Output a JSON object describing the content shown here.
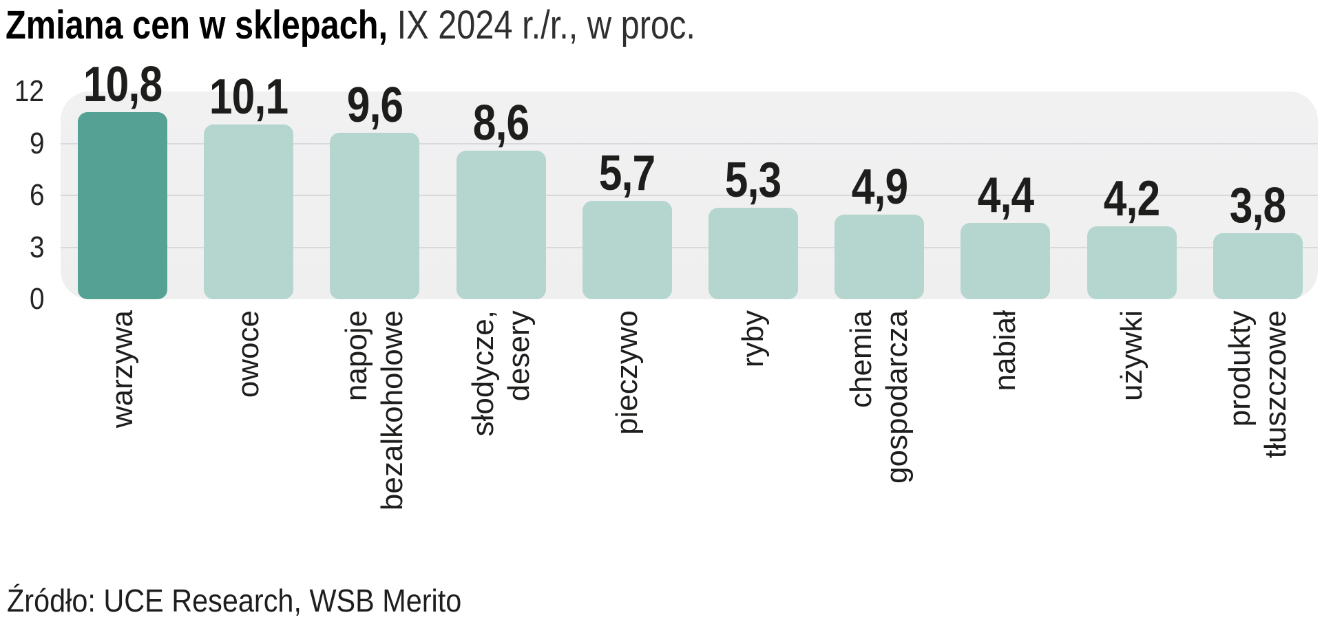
{
  "title": {
    "main": "Zmiana cen w sklepach,",
    "subtitle": "IX 2024 r./r., w proc."
  },
  "source": "Źródło: UCE Research, WSB Merito",
  "chart_data": {
    "type": "bar",
    "title": "Zmiana cen w sklepach, IX 2024 r./r., w proc.",
    "categories": [
      "warzywa",
      "owoce",
      "napoje bezalkoholowe",
      "słodycze, desery",
      "pieczywo",
      "ryby",
      "chemia gospodarcza",
      "nabiał",
      "używki",
      "produkty tłuszczowe"
    ],
    "category_lines": [
      [
        "warzywa"
      ],
      [
        "owoce"
      ],
      [
        "napoje",
        "bezalkoholowe"
      ],
      [
        "słodycze,",
        "desery"
      ],
      [
        "pieczywo"
      ],
      [
        "ryby"
      ],
      [
        "chemia",
        "gospodarcza"
      ],
      [
        "nabiał"
      ],
      [
        "używki"
      ],
      [
        "produkty",
        "tłuszczowe"
      ]
    ],
    "values": [
      10.8,
      10.1,
      9.6,
      8.6,
      5.7,
      5.3,
      4.9,
      4.4,
      4.2,
      3.8
    ],
    "value_labels": [
      "10,8",
      "10,1",
      "9,6",
      "8,6",
      "5,7",
      "5,3",
      "4,9",
      "4,4",
      "4,2",
      "3,8"
    ],
    "xlabel": "",
    "ylabel": "",
    "ylim": [
      0,
      12
    ],
    "y_tick_values": [
      12,
      9,
      6,
      3,
      0
    ],
    "y_tick_labels": [
      "12",
      "9",
      "6",
      "3",
      "0"
    ],
    "gridline_values": [
      3,
      6,
      9
    ],
    "grid": true,
    "legend": "none",
    "bar_label_position": "above",
    "x_label_rotation": -90,
    "highlight_index": 0,
    "colors": {
      "highlight_bar": "#55a294",
      "bar": "#b4d6ce",
      "panel_background": "#efeff0",
      "gridline": "#d8d9db",
      "label_text": "#1d1d1b"
    }
  }
}
